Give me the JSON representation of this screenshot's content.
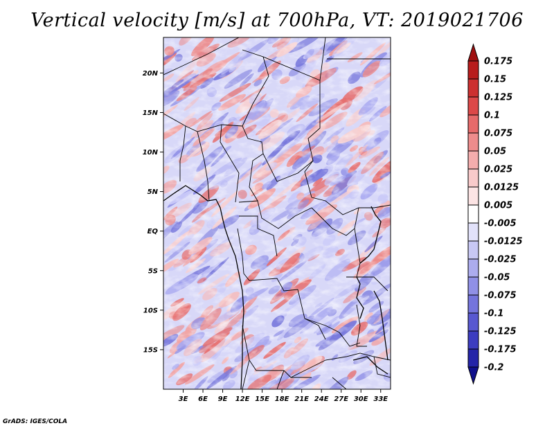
{
  "title": "Vertical velocity [m/s] at 700hPa, VT: 2019021706",
  "credit": "GrADS: IGES/COLA",
  "lat_labels": [
    "20N",
    "15N",
    "10N",
    "5N",
    "EQ",
    "5S",
    "10S",
    "15S"
  ],
  "lat_values": [
    20,
    15,
    10,
    5,
    0,
    -5,
    -10,
    -15
  ],
  "lon_labels": [
    "3E",
    "6E",
    "9E",
    "12E",
    "15E",
    "18E",
    "21E",
    "24E",
    "27E",
    "30E",
    "33E"
  ],
  "lon_values": [
    3,
    6,
    9,
    12,
    15,
    18,
    21,
    24,
    27,
    30,
    33
  ],
  "extent": {
    "lon_min": 0,
    "lon_max": 34.5,
    "lat_min": -20,
    "lat_max": 24.5
  },
  "colorbar": {
    "labels": [
      "0.175",
      "0.15",
      "0.125",
      "0.1",
      "0.075",
      "0.05",
      "0.025",
      "0.0125",
      "0.005",
      "-0.005",
      "-0.0125",
      "-0.025",
      "-0.05",
      "-0.075",
      "-0.1",
      "-0.125",
      "-0.175",
      "-0.2"
    ],
    "colors": [
      "#a01010",
      "#b81c1c",
      "#cc3030",
      "#dc4848",
      "#e66a6a",
      "#ee8c8c",
      "#f4adad",
      "#f8caca",
      "#fce4e4",
      "#ffffff",
      "#e2e2fa",
      "#c8c8f4",
      "#acacee",
      "#9090e6",
      "#7474dc",
      "#5858d0",
      "#3c3cc0",
      "#2424a8",
      "#10108c"
    ]
  }
}
